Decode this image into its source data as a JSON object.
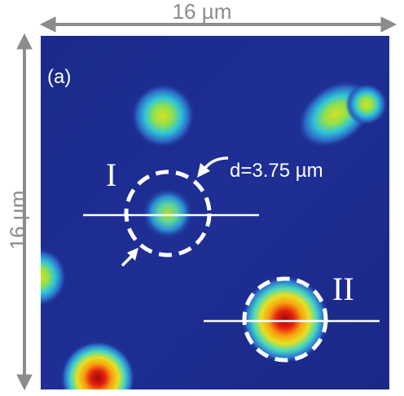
{
  "labels": {
    "width_dimension": "16 µm",
    "height_dimension": "16 µm",
    "panel": "(a)",
    "spot_one": "I",
    "spot_two": "II",
    "diameter": "d=3.75 µm"
  },
  "colors": {
    "background": "#1d2b8f",
    "dimension_arrow": "#8c8c8c",
    "annotation": "#ffffff"
  }
}
